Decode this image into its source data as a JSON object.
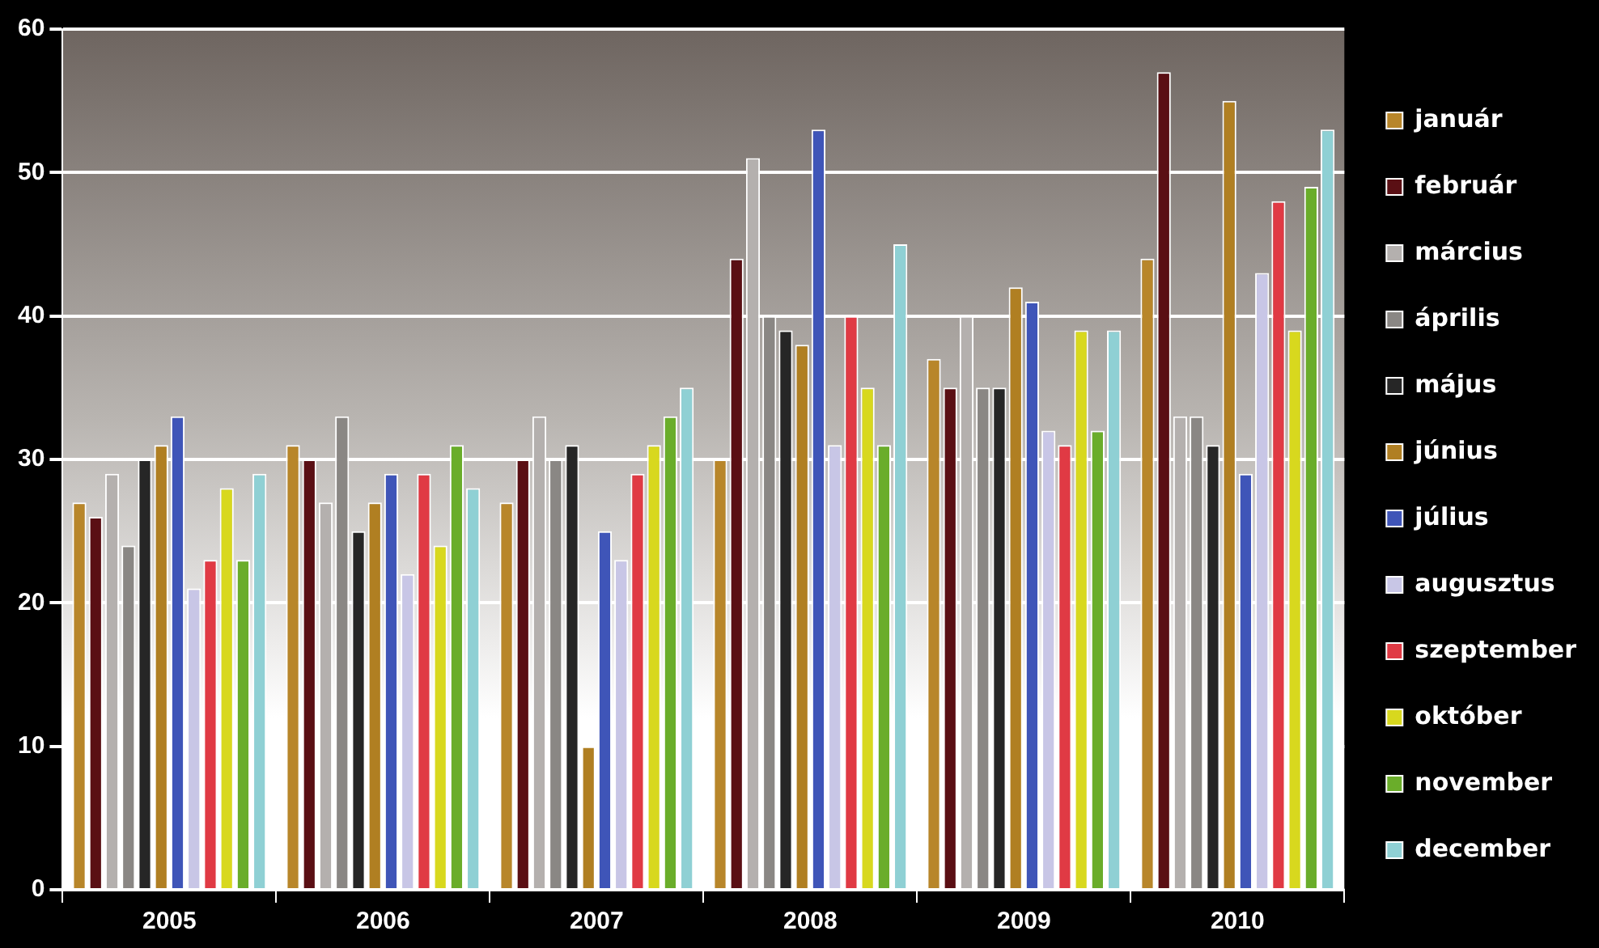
{
  "chart_data": {
    "type": "bar",
    "categories": [
      "2005",
      "2006",
      "2007",
      "2008",
      "2009",
      "2010"
    ],
    "series": [
      {
        "name": "január",
        "color": "#b8862a",
        "values": [
          27,
          31,
          27,
          30,
          37,
          44
        ]
      },
      {
        "name": "február",
        "color": "#5a0f14",
        "values": [
          26,
          30,
          30,
          44,
          35,
          57
        ]
      },
      {
        "name": "március",
        "color": "#b4b0ae",
        "values": [
          29,
          27,
          33,
          51,
          40,
          33
        ]
      },
      {
        "name": "április",
        "color": "#8a8784",
        "values": [
          24,
          33,
          30,
          40,
          35,
          33
        ]
      },
      {
        "name": "május",
        "color": "#262626",
        "values": [
          30,
          25,
          31,
          39,
          35,
          31
        ]
      },
      {
        "name": "június",
        "color": "#b07f22",
        "values": [
          31,
          27,
          10,
          38,
          42,
          55
        ]
      },
      {
        "name": "július",
        "color": "#3f55b8",
        "values": [
          33,
          29,
          25,
          53,
          41,
          29
        ]
      },
      {
        "name": "augusztus",
        "color": "#c8c6e6",
        "values": [
          21,
          22,
          23,
          31,
          32,
          43
        ]
      },
      {
        "name": "szeptember",
        "color": "#e03a44",
        "values": [
          23,
          29,
          29,
          40,
          31,
          48
        ]
      },
      {
        "name": "október",
        "color": "#d8d81e",
        "values": [
          28,
          24,
          31,
          35,
          39,
          39
        ]
      },
      {
        "name": "november",
        "color": "#6aad2a",
        "values": [
          23,
          31,
          33,
          31,
          32,
          49
        ]
      },
      {
        "name": "december",
        "color": "#8fd0d4",
        "values": [
          29,
          28,
          35,
          45,
          39,
          53
        ]
      }
    ],
    "ylim": [
      0,
      60
    ],
    "yticks": [
      0,
      10,
      20,
      30,
      40,
      50,
      60
    ],
    "grid": "y",
    "legend": "right"
  }
}
